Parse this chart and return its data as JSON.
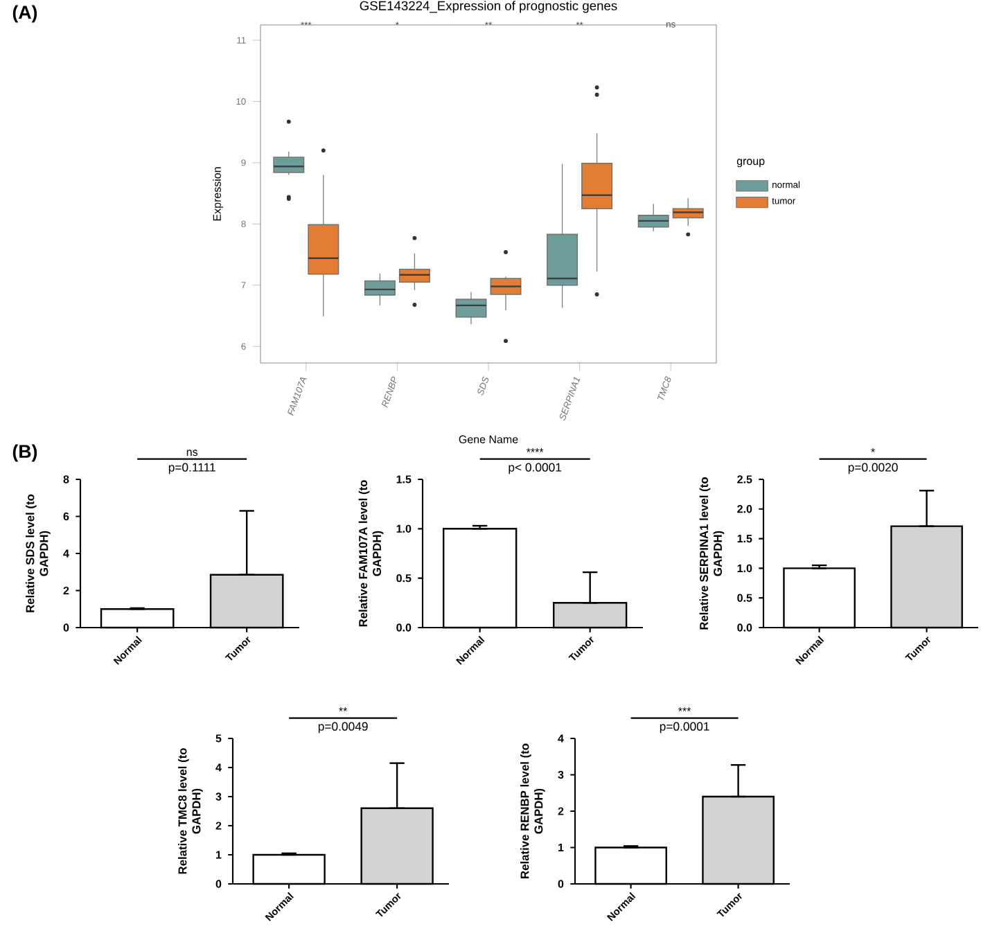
{
  "chart_data": [
    {
      "type": "box",
      "title": "GSE143224_Expression of prognostic genes",
      "xlabel": "Gene Name",
      "ylabel": "Expression",
      "legend_title": "group",
      "legend": "right",
      "categories": [
        "FAM107A",
        "RENBP",
        "SDS",
        "SERPINA1",
        "TMC8"
      ],
      "ylim": [
        5.73,
        11.25
      ],
      "yticks": [
        6,
        7,
        8,
        9,
        10,
        11
      ],
      "series": [
        {
          "name": "normal",
          "color": "#6f9d9b",
          "boxes": [
            {
              "low": 8.8,
              "q1": 8.84,
              "median": 8.94,
              "q3": 9.09,
              "high": 9.18,
              "outliers": [
                9.67,
                8.44,
                8.41
              ]
            },
            {
              "low": 6.67,
              "q1": 6.84,
              "median": 6.93,
              "q3": 7.07,
              "high": 7.19
            },
            {
              "low": 6.36,
              "q1": 6.48,
              "median": 6.67,
              "q3": 6.77,
              "high": 6.89
            },
            {
              "low": 6.63,
              "q1": 7.0,
              "median": 7.11,
              "q3": 7.83,
              "high": 8.98
            },
            {
              "low": 7.88,
              "q1": 7.95,
              "median": 8.05,
              "q3": 8.14,
              "high": 8.33
            }
          ]
        },
        {
          "name": "tumor",
          "color": "#e27d33",
          "boxes": [
            {
              "low": 6.49,
              "q1": 7.18,
              "median": 7.44,
              "q3": 7.99,
              "high": 8.8,
              "outliers": [
                9.2
              ]
            },
            {
              "low": 6.92,
              "q1": 7.05,
              "median": 7.17,
              "q3": 7.26,
              "high": 7.52,
              "outliers": [
                7.77,
                6.68
              ]
            },
            {
              "low": 6.59,
              "q1": 6.85,
              "median": 6.98,
              "q3": 7.11,
              "high": 7.14,
              "outliers": [
                7.54,
                6.09
              ]
            },
            {
              "low": 7.22,
              "q1": 8.25,
              "median": 8.47,
              "q3": 8.99,
              "high": 9.48,
              "outliers": [
                10.23,
                10.11,
                6.85
              ]
            },
            {
              "low": 7.97,
              "q1": 8.1,
              "median": 8.19,
              "q3": 8.25,
              "high": 8.42,
              "outliers": [
                7.83
              ]
            }
          ]
        }
      ],
      "annotations": [
        "***",
        "*",
        "**",
        "**",
        "ns",
        "(A)"
      ]
    },
    {
      "type": "bar",
      "categories": [
        "Normal",
        "Tumor"
      ],
      "values": [
        1.0,
        2.85
      ],
      "colors": [
        "#ffffff",
        "#d3d3d3"
      ],
      "errors": [
        [
          1.0,
          1.05
        ],
        [
          2.85,
          6.3
        ]
      ],
      "ylabel": "Relative SDS level (to GAPDH)",
      "ylim": [
        0,
        8
      ],
      "yticks": [
        0,
        2,
        4,
        6,
        8
      ],
      "annotations": [
        "ns",
        "p=0.1111",
        "(B)"
      ]
    },
    {
      "type": "bar",
      "categories": [
        "Normal",
        "Tumor"
      ],
      "values": [
        1.0,
        0.25
      ],
      "colors": [
        "#ffffff",
        "#d3d3d3"
      ],
      "errors": [
        [
          1.0,
          1.03
        ],
        [
          0.25,
          0.56
        ]
      ],
      "ylabel": "Relative FAM107A level (to GAPDH)",
      "ylim": [
        0,
        1.5
      ],
      "yticks": [
        {
          "value": 0,
          "label": "0.0"
        },
        {
          "value": 0.5,
          "label": "0.5"
        },
        {
          "value": 1,
          "label": "1.0"
        },
        {
          "value": 1.5,
          "label": "1.5"
        }
      ],
      "annotations": [
        "****",
        "p< 0.0001"
      ]
    },
    {
      "type": "bar",
      "categories": [
        "Normal",
        "Tumor"
      ],
      "values": [
        1.0,
        1.71
      ],
      "colors": [
        "#ffffff",
        "#d3d3d3"
      ],
      "errors": [
        [
          1.0,
          1.05
        ],
        [
          1.71,
          2.31
        ]
      ],
      "ylabel": "Relative SERPINA1 level (to GAPDH)",
      "ylim": [
        0,
        2.5
      ],
      "yticks": [
        {
          "value": 0,
          "label": "0.0"
        },
        {
          "value": 0.5,
          "label": "0.5"
        },
        {
          "value": 1,
          "label": "1.0"
        },
        {
          "value": 1.5,
          "label": "1.5"
        },
        {
          "value": 2,
          "label": "2.0"
        },
        {
          "value": 2.5,
          "label": "2.5"
        }
      ],
      "annotations": [
        "*",
        "p=0.0020"
      ]
    },
    {
      "type": "bar",
      "categories": [
        "Normal",
        "Tumor"
      ],
      "values": [
        1.0,
        2.6
      ],
      "colors": [
        "#ffffff",
        "#d3d3d3"
      ],
      "errors": [
        [
          1.0,
          1.05
        ],
        [
          2.6,
          4.15
        ]
      ],
      "ylabel": "Relative TMC8 level (to GAPDH)",
      "ylim": [
        0,
        5
      ],
      "yticks": [
        0,
        1,
        2,
        3,
        4,
        5
      ],
      "annotations": [
        "**",
        "p=0.0049"
      ]
    },
    {
      "type": "bar",
      "categories": [
        "Normal",
        "Tumor"
      ],
      "values": [
        1.0,
        2.4
      ],
      "colors": [
        "#ffffff",
        "#d3d3d3"
      ],
      "errors": [
        [
          1.0,
          1.04
        ],
        [
          2.4,
          3.27
        ]
      ],
      "ylabel": "Relative RENBP level (to GAPDH)",
      "ylim": [
        0,
        4
      ],
      "yticks": [
        0,
        1,
        2,
        3,
        4
      ],
      "annotations": [
        "***",
        "p=0.0001"
      ]
    }
  ]
}
